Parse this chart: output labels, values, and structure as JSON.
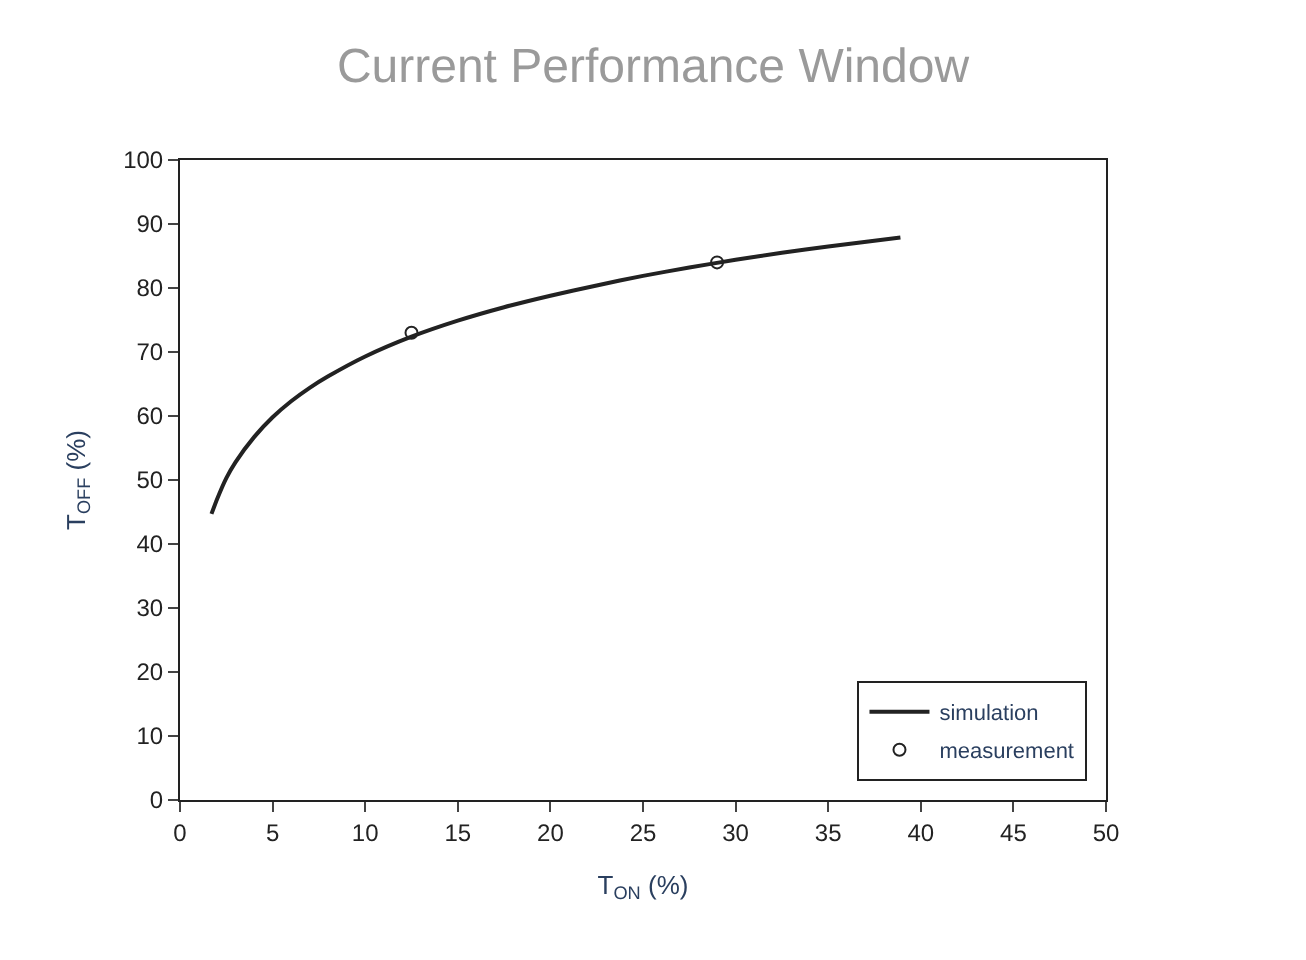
{
  "chart_data": {
    "type": "line",
    "title": "Current Performance Window",
    "xlabel": "T$_{ON}$ (%)",
    "ylabel": "T$_{OFF}$ (%)",
    "xlim": [
      0,
      50
    ],
    "xticks": [
      0,
      5,
      10,
      15,
      20,
      25,
      30,
      35,
      40,
      45,
      50
    ],
    "ylim": [
      0,
      100
    ],
    "yticks": [
      0,
      10,
      20,
      30,
      40,
      50,
      60,
      70,
      80,
      90,
      100
    ],
    "legend": "bottom right",
    "series": [
      {
        "name": "simulation",
        "color": "#222222",
        "marker": "none",
        "line_style": "solid",
        "x": [
          1.7,
          2,
          2.5,
          3,
          4,
          5,
          6,
          7,
          8,
          10,
          12.5,
          15,
          17.5,
          20,
          22.5,
          25,
          27.5,
          30,
          32.5,
          35,
          38.9
        ],
        "values": [
          44.7,
          47,
          50.3,
          52.8,
          56.7,
          59.8,
          62.3,
          64.4,
          66.2,
          69.3,
          72.4,
          74.9,
          77.0,
          78.8,
          80.4,
          81.9,
          83.2,
          84.4,
          85.5,
          86.5,
          87.9
        ]
      },
      {
        "name": "measurement",
        "type": "scatter",
        "color": "#222222",
        "marker": "circle",
        "x": [
          12.5,
          29
        ],
        "values": [
          73,
          84
        ]
      }
    ]
  }
}
